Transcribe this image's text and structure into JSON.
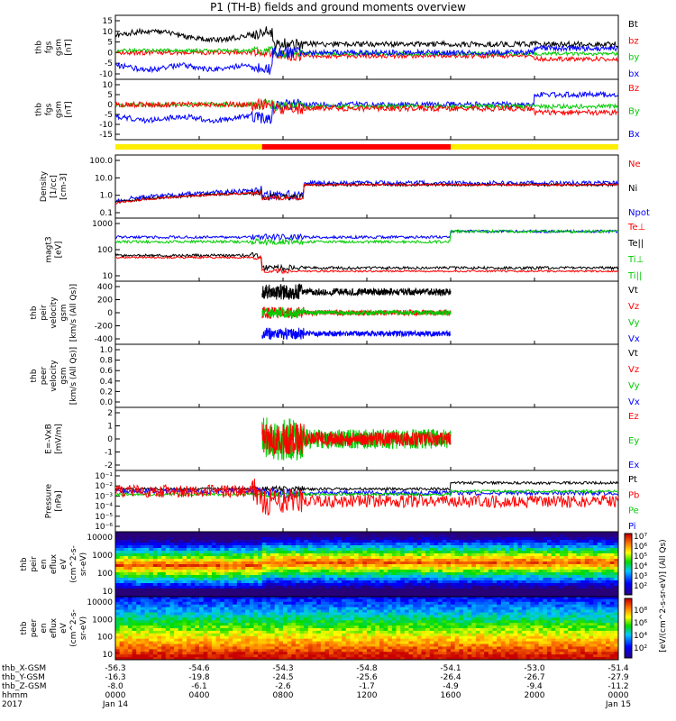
{
  "title": "P1 (TH-B) fields and ground moments overview",
  "panels": [
    {
      "id": "fgs",
      "ylabel": [
        "thb",
        "fgs",
        "gsm",
        "[nT]"
      ],
      "ticks": [
        "15",
        "10",
        "5",
        "0",
        "-5",
        "-10"
      ],
      "legend": [
        {
          "t": "Bt",
          "c": "#000000"
        },
        {
          "t": "bz",
          "c": "#ff0000"
        },
        {
          "t": "by",
          "c": "#00cc00"
        },
        {
          "t": "bx",
          "c": "#0000ff"
        }
      ]
    },
    {
      "id": "fgs2",
      "ylabel": [
        "thb",
        "fgs",
        "gsm",
        "[nT]"
      ],
      "ticks": [
        "10",
        "5",
        "0",
        "-5",
        "-10",
        "-15"
      ],
      "legend": [
        {
          "t": "Bz",
          "c": "#ff0000"
        },
        {
          "t": "By",
          "c": "#00cc00"
        },
        {
          "t": "Bx",
          "c": "#0000ff"
        }
      ]
    },
    {
      "id": "density",
      "ylabel": [
        "Density",
        "[1/cc]",
        "[cm-3]"
      ],
      "ticks": [
        "100.0",
        "10.0",
        "1.0",
        "0.1"
      ],
      "legend": [
        {
          "t": "Ne",
          "c": "#ff0000"
        },
        {
          "t": "Ni",
          "c": "#000000"
        },
        {
          "t": "Npot",
          "c": "#0000ff"
        }
      ]
    },
    {
      "id": "temp",
      "ylabel": [
        "magt3",
        "[eV]"
      ],
      "ticks": [
        "1000",
        "100",
        "10"
      ],
      "legend": [
        {
          "t": "Te⊥",
          "c": "#ff0000"
        },
        {
          "t": "Te||",
          "c": "#000000"
        },
        {
          "t": "Ti⊥",
          "c": "#00cc00"
        },
        {
          "t": "Ti||",
          "c": "#00cc00"
        }
      ]
    },
    {
      "id": "peirv",
      "ylabel": [
        "thb",
        "peir",
        "velocity",
        "gsm",
        "[km/s (All Qs)]"
      ],
      "ticks": [
        "400",
        "200",
        "0",
        "-200",
        "-400"
      ],
      "legend": [
        {
          "t": "Vt",
          "c": "#000000"
        },
        {
          "t": "Vz",
          "c": "#ff0000"
        },
        {
          "t": "Vy",
          "c": "#00cc00"
        },
        {
          "t": "Vx",
          "c": "#0000ff"
        }
      ]
    },
    {
      "id": "peerv",
      "ylabel": [
        "thb",
        "peer",
        "velocity",
        "gsm",
        "[km/s (All Qs)]"
      ],
      "ticks": [
        "1.0",
        "0.8",
        "0.6",
        "0.4",
        "0.2",
        "0.0"
      ],
      "legend": [
        {
          "t": "Vt",
          "c": "#000000"
        },
        {
          "t": "Vz",
          "c": "#ff0000"
        },
        {
          "t": "Vy",
          "c": "#00cc00"
        },
        {
          "t": "Vx",
          "c": "#0000ff"
        }
      ]
    },
    {
      "id": "efield",
      "ylabel": [
        "E=-VxB",
        "[mV/m]"
      ],
      "ticks": [
        "2",
        "1",
        "0",
        "-1",
        "-2"
      ],
      "legend": [
        {
          "t": "Ez",
          "c": "#ff0000"
        },
        {
          "t": "Ey",
          "c": "#00cc00"
        },
        {
          "t": "Ex",
          "c": "#0000ff"
        }
      ]
    },
    {
      "id": "pressure",
      "ylabel": [
        "Pressure",
        "[nPa]"
      ],
      "ticks": [
        "10⁻¹",
        "10⁻²",
        "10⁻³",
        "10⁻⁴",
        "10⁻⁵",
        "10⁻⁶"
      ],
      "legend": [
        {
          "t": "Pt",
          "c": "#000000"
        },
        {
          "t": "Pb",
          "c": "#ff0000"
        },
        {
          "t": "Pe",
          "c": "#00cc00"
        },
        {
          "t": "Pi",
          "c": "#0000ff"
        }
      ]
    },
    {
      "id": "peiren",
      "ylabel": [
        "thb",
        "peir",
        "en",
        "eflux",
        "eV",
        "(cm^2-s-",
        "sr-eV)"
      ],
      "ticks": [
        "10000",
        "1000",
        "100",
        "10"
      ],
      "legend": []
    },
    {
      "id": "peeren",
      "ylabel": [
        "thb",
        "peer",
        "en",
        "eflux",
        "eV",
        "(cm^2-s-",
        "sr-eV)"
      ],
      "ticks": [
        "10000",
        "1000",
        "100",
        "10"
      ],
      "legend": []
    }
  ],
  "colorbar": {
    "top_ticks": [
      "10⁷",
      "10⁶",
      "10⁵",
      "10⁴",
      "10³",
      "10²"
    ],
    "bottom_ticks": [
      "10⁸",
      "10⁶",
      "10⁴",
      "10²"
    ],
    "label": "[eV/(cm^2-s-sr-eV)] (All Qs)"
  },
  "xaxis": {
    "rows": [
      {
        "name": "thb_X-GSM",
        "values": [
          "-56.3",
          "-54.6",
          "-54.3",
          "-54.8",
          "-54.1",
          "-53.0",
          "-51.4"
        ]
      },
      {
        "name": "thb_Y-GSM",
        "values": [
          "-16.3",
          "-19.8",
          "-24.5",
          "-25.6",
          "-26.4",
          "-26.7",
          "-27.9"
        ]
      },
      {
        "name": "thb_Z-GSM",
        "values": [
          "-8.0",
          "-6.1",
          "-2.6",
          "-1.7",
          "-4.9",
          "-9.4",
          "-11.2"
        ]
      },
      {
        "name": "hhmm",
        "values": [
          "0000",
          "0400",
          "0800",
          "1200",
          "1600",
          "2000",
          "0000"
        ]
      },
      {
        "name": "2017",
        "values": [
          "Jan 14",
          "",
          "",
          "",
          "",
          "",
          "Jan 15"
        ]
      }
    ]
  },
  "chart_data": {
    "type": "line",
    "x_label": "hhmm",
    "x_ticks": [
      "0000",
      "0400",
      "0800",
      "1200",
      "1600",
      "2000",
      "0000"
    ],
    "x_range_hours": [
      0,
      24
    ],
    "status_bar": [
      {
        "from_h": 0,
        "to_h": 7.0,
        "color": "#ffee00"
      },
      {
        "from_h": 7.0,
        "to_h": 16.0,
        "color": "#ff0000"
      },
      {
        "from_h": 16.0,
        "to_h": 24,
        "color": "#ffee00"
      }
    ],
    "panels": [
      {
        "name": "fgs gsm",
        "ylim": [
          -15,
          15
        ],
        "series": [
          {
            "name": "Bt",
            "approx_level": [
              8,
              3
            ]
          },
          {
            "name": "bz",
            "approx_level": [
              1,
              -3
            ]
          },
          {
            "name": "by",
            "approx_level": [
              0,
              -1
            ]
          },
          {
            "name": "bx",
            "approx_level": [
              -7,
              -1
            ]
          }
        ]
      },
      {
        "name": "fgs gsm",
        "ylim": [
          -18,
          12
        ],
        "series": [
          {
            "name": "Bz",
            "approx_level": [
              1,
              -3
            ]
          },
          {
            "name": "By",
            "approx_level": [
              0,
              -1
            ]
          },
          {
            "name": "Bx",
            "approx_level": [
              -7,
              5
            ]
          }
        ]
      },
      {
        "name": "Density",
        "ylog": true,
        "ylim": [
          0.1,
          200
        ],
        "series": [
          {
            "name": "Ne",
            "approx_level": [
              0.5,
              5
            ]
          },
          {
            "name": "Ni",
            "approx_level": [
              0.5,
              5
            ]
          },
          {
            "name": "Npot",
            "approx_level": [
              1,
              10
            ]
          }
        ]
      },
      {
        "name": "magt3",
        "ylog": true,
        "ylim": [
          5,
          3000
        ],
        "series": [
          {
            "name": "Te⊥",
            "approx_level": [
              60,
              15
            ]
          },
          {
            "name": "Te||",
            "approx_level": [
              60,
              15
            ]
          },
          {
            "name": "Ti⊥",
            "approx_level": [
              300,
              500
            ]
          },
          {
            "name": "Ti||",
            "approx_level": [
              300,
              500
            ]
          }
        ]
      },
      {
        "name": "peir velocity",
        "ylim": [
          -400,
          400
        ],
        "series": [
          {
            "name": "Vt",
            "approx_level": [
              300,
              320
            ]
          },
          {
            "name": "Vz",
            "approx_level": [
              0,
              0
            ]
          },
          {
            "name": "Vy",
            "approx_level": [
              0,
              0
            ]
          },
          {
            "name": "Vx",
            "approx_level": [
              -300,
              -320
            ]
          }
        ]
      },
      {
        "name": "peer velocity",
        "ylim": [
          0,
          1
        ],
        "series": []
      },
      {
        "name": "E=-VxB",
        "ylim": [
          -2.5,
          2.5
        ],
        "series": [
          {
            "name": "Ez",
            "approx_level": [
              0,
              0
            ]
          },
          {
            "name": "Ey",
            "approx_level": [
              0,
              0
            ]
          },
          {
            "name": "Ex",
            "approx_level": [
              0,
              0
            ]
          }
        ]
      },
      {
        "name": "Pressure",
        "ylog": true,
        "ylim": [
          1e-06,
          0.1
        ],
        "series": [
          {
            "name": "Pt",
            "approx_level": [
              0.003,
              0.02
            ]
          },
          {
            "name": "Pb",
            "approx_level": [
              0.002,
              0.002
            ]
          },
          {
            "name": "Pe",
            "approx_level": [
              0.001,
              0.003
            ]
          },
          {
            "name": "Pi",
            "approx_level": [
              0.002,
              0.02
            ]
          }
        ]
      },
      {
        "name": "peir en eflux",
        "type": "heatmap",
        "ylog": true,
        "ylim": [
          5,
          30000
        ]
      },
      {
        "name": "peer en eflux",
        "type": "heatmap",
        "ylog": true,
        "ylim": [
          5,
          30000
        ]
      }
    ]
  }
}
